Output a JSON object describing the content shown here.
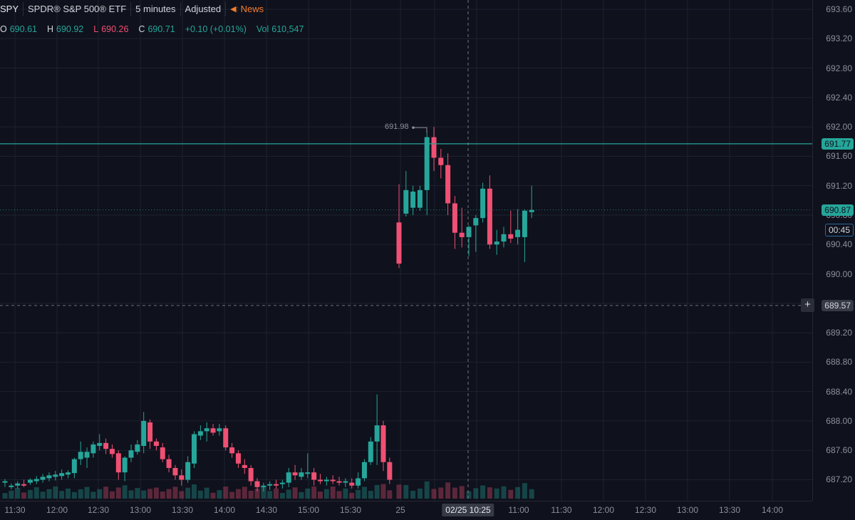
{
  "header": {
    "symbol": "SPY",
    "name": "SPDR® S&P 500® ETF",
    "interval": "5 minutes",
    "adjust": "Adjusted",
    "news": "News"
  },
  "ohlc": {
    "o_label": "O",
    "o_value": "690.61",
    "h_label": "H",
    "h_value": "690.92",
    "l_label": "L",
    "l_value": "690.26",
    "c_label": "C",
    "c_value": "690.71",
    "change": "+0.10 (+0.01%)",
    "vol_label": "Vol",
    "vol_value": "610,547"
  },
  "price_axis": {
    "ticks": [
      "693.60",
      "693.20",
      "692.80",
      "692.40",
      "692.00",
      "691.60",
      "691.20",
      "690.80",
      "690.40",
      "690.00",
      "689.60",
      "689.20",
      "688.80",
      "688.40",
      "688.00",
      "687.60",
      "687.20"
    ],
    "horizontal_line_price": "691.77",
    "last_price": "690.87",
    "countdown": "00:45",
    "crosshair_price": "689.57"
  },
  "time_axis": {
    "labels": [
      "11:30",
      "12:00",
      "12:30",
      "13:00",
      "13:30",
      "14:00",
      "14:30",
      "15:00",
      "15:30",
      "25",
      "11:00",
      "11:30",
      "12:00",
      "12:30",
      "13:00",
      "13:30",
      "14:00"
    ],
    "crosshair_time": "02/25 10:25"
  },
  "annotations": {
    "session_high": "691.98"
  },
  "colors": {
    "up": "#26a69a",
    "down": "#ef5073",
    "grid": "#1e2230",
    "background": "#0f111c",
    "hline": "#26a69a"
  },
  "chart_data": {
    "type": "candlestick",
    "symbol": "SPY",
    "ylim": [
      687.0,
      693.8
    ],
    "candles_previous_day": [
      {
        "o": 687.16,
        "h": 687.21,
        "l": 687.1,
        "c": 687.18
      },
      {
        "o": 687.1,
        "h": 687.15,
        "l": 687.07,
        "c": 687.12
      },
      {
        "o": 687.12,
        "h": 687.18,
        "l": 687.08,
        "c": 687.15
      },
      {
        "o": 687.14,
        "h": 687.2,
        "l": 687.1,
        "c": 687.12
      },
      {
        "o": 687.16,
        "h": 687.22,
        "l": 687.13,
        "c": 687.2
      },
      {
        "o": 687.18,
        "h": 687.25,
        "l": 687.14,
        "c": 687.21
      },
      {
        "o": 687.2,
        "h": 687.28,
        "l": 687.16,
        "c": 687.24
      },
      {
        "o": 687.22,
        "h": 687.3,
        "l": 687.18,
        "c": 687.26
      },
      {
        "o": 687.24,
        "h": 687.32,
        "l": 687.19,
        "c": 687.27
      },
      {
        "o": 687.25,
        "h": 687.34,
        "l": 687.2,
        "c": 687.29
      },
      {
        "o": 687.27,
        "h": 687.33,
        "l": 687.22,
        "c": 687.3
      },
      {
        "o": 687.29,
        "h": 687.5,
        "l": 687.22,
        "c": 687.48
      },
      {
        "o": 687.48,
        "h": 687.72,
        "l": 687.4,
        "c": 687.58
      },
      {
        "o": 687.5,
        "h": 687.64,
        "l": 687.36,
        "c": 687.58
      },
      {
        "o": 687.56,
        "h": 687.72,
        "l": 687.5,
        "c": 687.68
      },
      {
        "o": 687.66,
        "h": 687.82,
        "l": 687.6,
        "c": 687.7
      },
      {
        "o": 687.7,
        "h": 687.76,
        "l": 687.55,
        "c": 687.62
      },
      {
        "o": 687.62,
        "h": 687.68,
        "l": 687.5,
        "c": 687.55
      },
      {
        "o": 687.56,
        "h": 687.6,
        "l": 687.2,
        "c": 687.3
      },
      {
        "o": 687.3,
        "h": 687.52,
        "l": 687.18,
        "c": 687.5
      },
      {
        "o": 687.5,
        "h": 687.68,
        "l": 687.44,
        "c": 687.6
      },
      {
        "o": 687.58,
        "h": 687.74,
        "l": 687.54,
        "c": 687.68
      },
      {
        "o": 687.66,
        "h": 688.12,
        "l": 687.56,
        "c": 688.0
      },
      {
        "o": 687.98,
        "h": 688.02,
        "l": 687.62,
        "c": 687.72
      },
      {
        "o": 687.72,
        "h": 687.76,
        "l": 687.6,
        "c": 687.66
      },
      {
        "o": 687.64,
        "h": 687.7,
        "l": 687.44,
        "c": 687.48
      },
      {
        "o": 687.48,
        "h": 687.54,
        "l": 687.3,
        "c": 687.36
      },
      {
        "o": 687.36,
        "h": 687.4,
        "l": 687.2,
        "c": 687.26
      },
      {
        "o": 687.26,
        "h": 687.34,
        "l": 687.12,
        "c": 687.2
      },
      {
        "o": 687.2,
        "h": 687.52,
        "l": 687.16,
        "c": 687.44
      },
      {
        "o": 687.42,
        "h": 687.86,
        "l": 687.36,
        "c": 687.82
      },
      {
        "o": 687.8,
        "h": 687.94,
        "l": 687.74,
        "c": 687.86
      },
      {
        "o": 687.86,
        "h": 687.98,
        "l": 687.72,
        "c": 687.9
      },
      {
        "o": 687.9,
        "h": 687.96,
        "l": 687.8,
        "c": 687.84
      },
      {
        "o": 687.86,
        "h": 687.96,
        "l": 687.8,
        "c": 687.9
      },
      {
        "o": 687.9,
        "h": 687.94,
        "l": 687.6,
        "c": 687.64
      },
      {
        "o": 687.64,
        "h": 687.7,
        "l": 687.5,
        "c": 687.56
      },
      {
        "o": 687.56,
        "h": 687.6,
        "l": 687.36,
        "c": 687.42
      },
      {
        "o": 687.4,
        "h": 687.48,
        "l": 687.28,
        "c": 687.36
      },
      {
        "o": 687.36,
        "h": 687.4,
        "l": 687.12,
        "c": 687.18
      },
      {
        "o": 687.18,
        "h": 687.22,
        "l": 687.04,
        "c": 687.1
      },
      {
        "o": 687.1,
        "h": 687.16,
        "l": 687.04,
        "c": 687.12
      },
      {
        "o": 687.12,
        "h": 687.18,
        "l": 687.06,
        "c": 687.14
      },
      {
        "o": 687.14,
        "h": 687.2,
        "l": 687.08,
        "c": 687.12
      },
      {
        "o": 687.14,
        "h": 687.2,
        "l": 687.08,
        "c": 687.16
      },
      {
        "o": 687.16,
        "h": 687.36,
        "l": 687.1,
        "c": 687.3
      },
      {
        "o": 687.3,
        "h": 687.4,
        "l": 687.2,
        "c": 687.26
      },
      {
        "o": 687.24,
        "h": 687.36,
        "l": 687.2,
        "c": 687.3
      },
      {
        "o": 687.28,
        "h": 687.56,
        "l": 687.22,
        "c": 687.3
      },
      {
        "o": 687.3,
        "h": 687.36,
        "l": 687.12,
        "c": 687.2
      },
      {
        "o": 687.2,
        "h": 687.28,
        "l": 687.14,
        "c": 687.18
      },
      {
        "o": 687.18,
        "h": 687.24,
        "l": 687.12,
        "c": 687.2
      },
      {
        "o": 687.2,
        "h": 687.26,
        "l": 687.14,
        "c": 687.18
      },
      {
        "o": 687.18,
        "h": 687.24,
        "l": 687.12,
        "c": 687.16
      },
      {
        "o": 687.16,
        "h": 687.22,
        "l": 687.1,
        "c": 687.18
      },
      {
        "o": 687.16,
        "h": 687.22,
        "l": 687.08,
        "c": 687.12
      },
      {
        "o": 687.12,
        "h": 687.3,
        "l": 687.08,
        "c": 687.22
      },
      {
        "o": 687.22,
        "h": 687.48,
        "l": 687.18,
        "c": 687.44
      },
      {
        "o": 687.44,
        "h": 687.78,
        "l": 687.4,
        "c": 687.72
      },
      {
        "o": 687.72,
        "h": 688.36,
        "l": 687.4,
        "c": 687.94
      },
      {
        "o": 687.94,
        "h": 688.0,
        "l": 687.32,
        "c": 687.44
      },
      {
        "o": 687.44,
        "h": 687.5,
        "l": 687.14,
        "c": 687.2
      }
    ],
    "candles_current_day": [
      {
        "o": 690.7,
        "h": 691.22,
        "l": 690.08,
        "c": 690.14
      },
      {
        "o": 690.82,
        "h": 691.4,
        "l": 690.78,
        "c": 691.14
      },
      {
        "o": 690.9,
        "h": 691.2,
        "l": 690.8,
        "c": 691.12
      },
      {
        "o": 690.9,
        "h": 691.2,
        "l": 690.86,
        "c": 691.14
      },
      {
        "o": 691.14,
        "h": 691.94,
        "l": 690.8,
        "c": 691.86
      },
      {
        "o": 691.86,
        "h": 692.0,
        "l": 691.4,
        "c": 691.58
      },
      {
        "o": 691.58,
        "h": 691.7,
        "l": 691.3,
        "c": 691.48
      },
      {
        "o": 691.48,
        "h": 691.64,
        "l": 690.8,
        "c": 690.96
      },
      {
        "o": 690.96,
        "h": 691.06,
        "l": 690.34,
        "c": 690.56
      },
      {
        "o": 690.56,
        "h": 690.9,
        "l": 690.36,
        "c": 690.5
      },
      {
        "o": 690.5,
        "h": 690.66,
        "l": 690.24,
        "c": 690.64
      },
      {
        "o": 690.66,
        "h": 690.8,
        "l": 690.3,
        "c": 690.76
      },
      {
        "o": 690.76,
        "h": 691.24,
        "l": 690.7,
        "c": 691.16
      },
      {
        "o": 691.16,
        "h": 691.34,
        "l": 690.34,
        "c": 690.4
      },
      {
        "o": 690.4,
        "h": 690.6,
        "l": 690.26,
        "c": 690.44
      },
      {
        "o": 690.44,
        "h": 690.64,
        "l": 690.36,
        "c": 690.54
      },
      {
        "o": 690.54,
        "h": 690.86,
        "l": 690.42,
        "c": 690.48
      },
      {
        "o": 690.5,
        "h": 690.88,
        "l": 690.4,
        "c": 690.6
      },
      {
        "o": 690.5,
        "h": 690.88,
        "l": 690.16,
        "c": 690.86
      },
      {
        "o": 690.84,
        "h": 691.2,
        "l": 690.76,
        "c": 690.87
      }
    ]
  }
}
